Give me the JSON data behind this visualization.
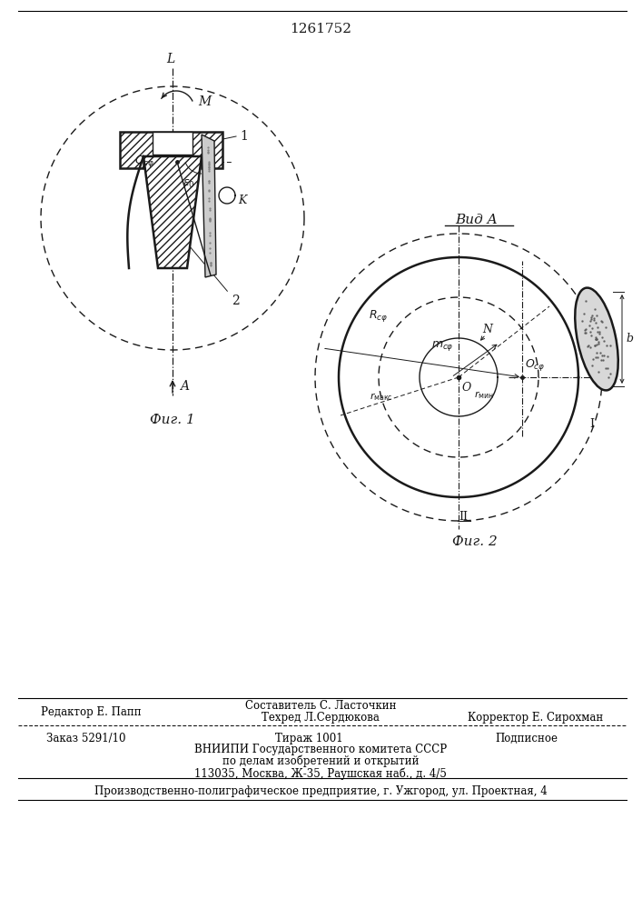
{
  "patent_number": "1261752",
  "fig1_caption": "Фиг. 1",
  "fig2_caption": "Фиг. 2",
  "vid_a_label": "Вид A",
  "footer": {
    "line1_left": "Редактор Е. Папп",
    "line1_center_top": "Составитель С. Ласточкин",
    "line1_center_bottom": "Техред Л.Сердюкова",
    "line1_right": "Корректор Е. Сирохман",
    "line2_left": "Заказ 5291/10",
    "line2_center": "Тираж 1001",
    "line2_right": "Подписное",
    "line3": "ВНИИПИ Государственного комитета СССР",
    "line4": "по делам изобретений и открытий",
    "line5": "113035, Москва, Ж-35, Раушская наб., д. 4/5",
    "line6": "Производственно-полиграфическое предприятие, г. Ужгород, ул. Проектная, 4"
  },
  "bg_color": "#ffffff",
  "line_color": "#1a1a1a"
}
